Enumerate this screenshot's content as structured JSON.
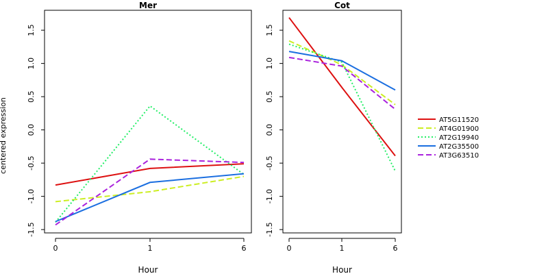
{
  "ylabel": "centered expression",
  "chart_data": [
    {
      "type": "line",
      "title": "Mer",
      "xlabel": "Hour",
      "x_ticks": [
        "0",
        "1",
        "6"
      ],
      "y_ticks": [
        "-1.5",
        "-1.0",
        "-0.5",
        "0.0",
        "0.5",
        "1.0",
        "1.5"
      ],
      "ylim": [
        -1.55,
        1.8
      ],
      "series": [
        {
          "name": "AT5G11520",
          "values": [
            -0.83,
            -0.58,
            -0.51
          ]
        },
        {
          "name": "AT4G01900",
          "values": [
            -1.08,
            -0.93,
            -0.7
          ]
        },
        {
          "name": "AT2G19940",
          "values": [
            -1.39,
            0.36,
            -0.67
          ]
        },
        {
          "name": "AT2G35500",
          "values": [
            -1.38,
            -0.79,
            -0.66
          ]
        },
        {
          "name": "AT3G63510",
          "values": [
            -1.43,
            -0.44,
            -0.49
          ]
        }
      ]
    },
    {
      "type": "line",
      "title": "Cot",
      "xlabel": "Hour",
      "x_ticks": [
        "0",
        "1",
        "6"
      ],
      "y_ticks": [
        "-1.5",
        "-1.0",
        "-0.5",
        "0.0",
        "0.5",
        "1.0",
        "1.5"
      ],
      "ylim": [
        -1.55,
        1.8
      ],
      "series": [
        {
          "name": "AT5G11520",
          "values": [
            1.69,
            0.64,
            -0.39
          ]
        },
        {
          "name": "AT4G01900",
          "values": [
            1.34,
            0.98,
            0.38
          ]
        },
        {
          "name": "AT2G19940",
          "values": [
            1.29,
            1.02,
            -0.62
          ]
        },
        {
          "name": "AT2G35500",
          "values": [
            1.18,
            1.04,
            0.6
          ]
        },
        {
          "name": "AT3G63510",
          "values": [
            1.09,
            0.96,
            0.31
          ]
        }
      ]
    }
  ],
  "legend": {
    "placement": "right",
    "entries": [
      {
        "name": "AT5G11520",
        "color": "#dd1010",
        "dash": "solid"
      },
      {
        "name": "AT4G01900",
        "color": "#ccee22",
        "dash": "dashed"
      },
      {
        "name": "AT2G19940",
        "color": "#22ee66",
        "dash": "dotted"
      },
      {
        "name": "AT2G35500",
        "color": "#1a6ee0",
        "dash": "solid"
      },
      {
        "name": "AT3G63510",
        "color": "#aa22dd",
        "dash": "dashed"
      }
    ]
  }
}
